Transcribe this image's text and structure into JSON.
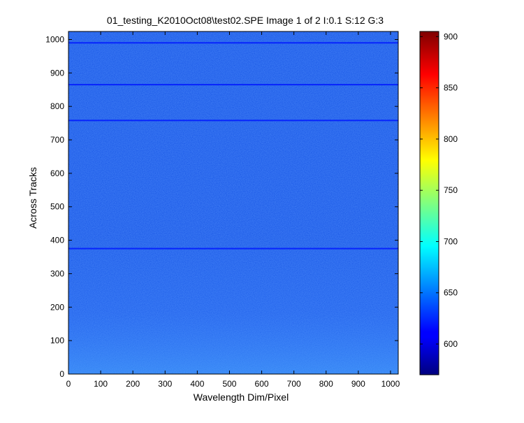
{
  "chart_data": [
    {
      "type": "heatmap",
      "title": "01_testing_K2010Oct08\\test02.SPE  Image 1 of 2  I:0.1  S:12  G:3",
      "xlabel": "Wavelength Dim/Pixel",
      "ylabel": "Across Tracks",
      "xlim": [
        0,
        1024
      ],
      "ylim": [
        0,
        1024
      ],
      "x_ticks": [
        0,
        100,
        200,
        300,
        400,
        500,
        600,
        700,
        800,
        900,
        1000
      ],
      "y_ticks": [
        0,
        100,
        200,
        300,
        400,
        500,
        600,
        700,
        800,
        900,
        1000
      ],
      "grid": false,
      "colormap": "jet",
      "background_level": 640,
      "darker_row_bands": [
        375,
        758,
        865,
        990
      ],
      "colorbar": {
        "range": [
          570,
          905
        ],
        "ticks": [
          600,
          650,
          700,
          750,
          800,
          850,
          900
        ]
      }
    }
  ]
}
